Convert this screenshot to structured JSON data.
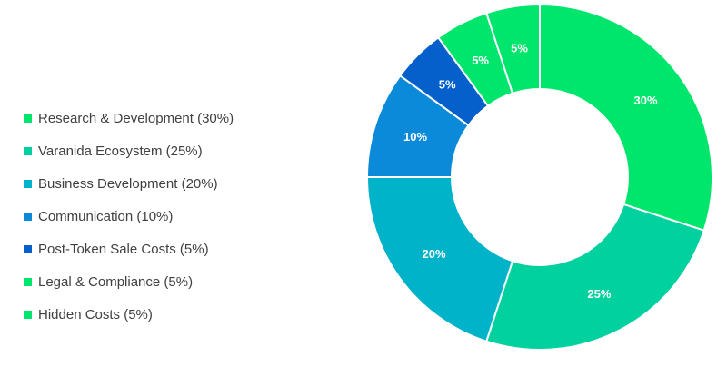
{
  "chart_data": {
    "type": "pie",
    "variant": "donut",
    "title": "",
    "legend_position": "left",
    "slices": [
      {
        "label": "Research & Development (30%)",
        "value": 30,
        "data_label": "30%",
        "color": "#00e56b"
      },
      {
        "label": "Varanida Ecosystem (25%)",
        "value": 25,
        "data_label": "25%",
        "color": "#00d19f"
      },
      {
        "label": "Business Development (20%)",
        "value": 20,
        "data_label": "20%",
        "color": "#00b3c9"
      },
      {
        "label": "Communication (10%)",
        "value": 10,
        "data_label": "10%",
        "color": "#0a8ad9"
      },
      {
        "label": "Post-Token Sale Costs (5%)",
        "value": 5,
        "data_label": "5%",
        "color": "#0560cc"
      },
      {
        "label": "Legal & Compliance (5%)",
        "value": 5,
        "data_label": "5%",
        "color": "#00e56b"
      },
      {
        "label": "Hidden Costs (5%)",
        "value": 5,
        "data_label": "5%",
        "color": "#00e56b"
      }
    ]
  }
}
